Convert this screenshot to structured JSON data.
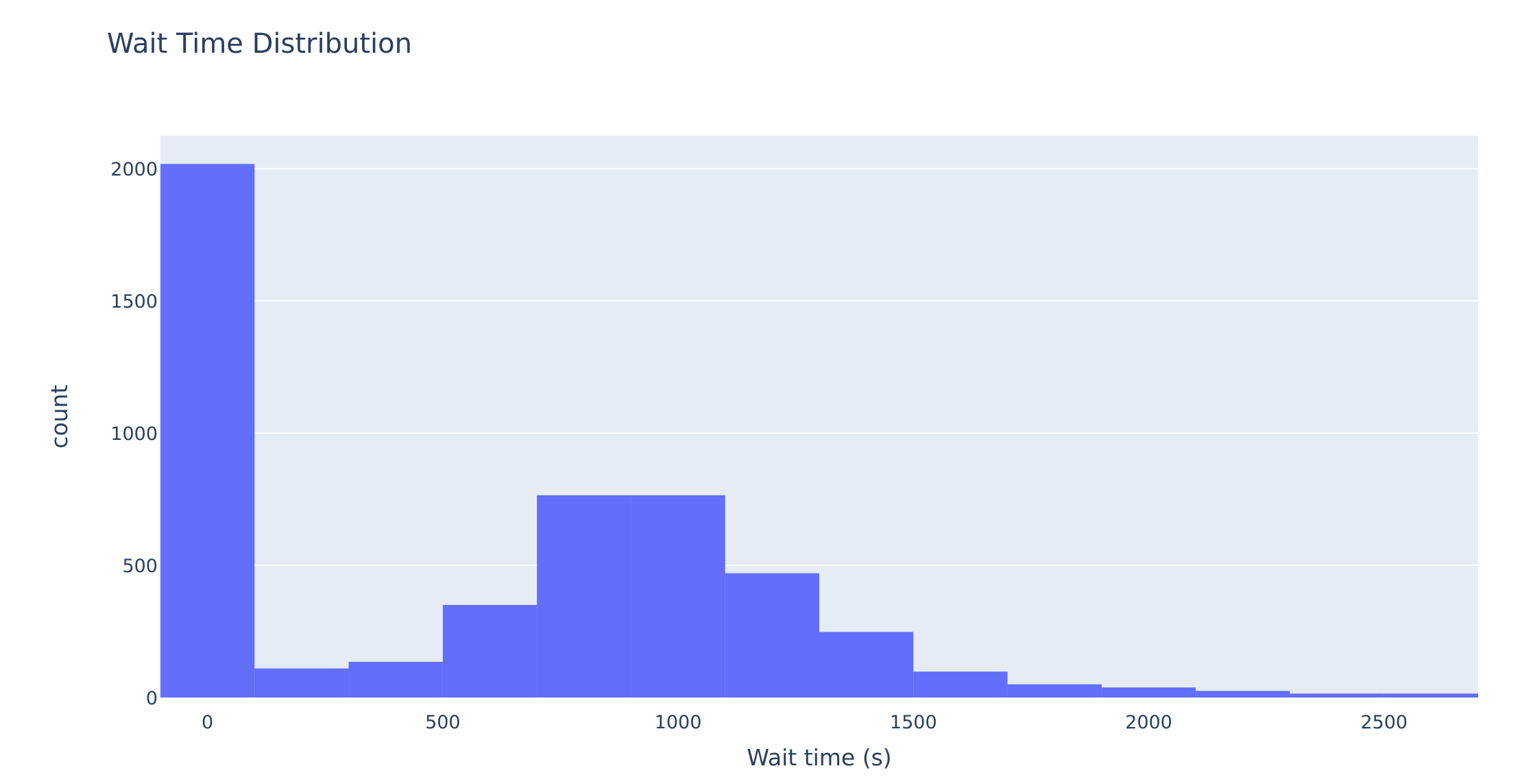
{
  "chart_data": {
    "type": "bar",
    "title": "Wait Time Distribution",
    "xlabel": "Wait time (s)",
    "ylabel": "count",
    "bin_width": 200,
    "bins": [
      {
        "x0": -100,
        "x1": 100,
        "count": 2018
      },
      {
        "x0": 100,
        "x1": 300,
        "count": 110
      },
      {
        "x0": 300,
        "x1": 500,
        "count": 135
      },
      {
        "x0": 500,
        "x1": 700,
        "count": 350
      },
      {
        "x0": 700,
        "x1": 900,
        "count": 765
      },
      {
        "x0": 900,
        "x1": 1100,
        "count": 765
      },
      {
        "x0": 1100,
        "x1": 1300,
        "count": 470
      },
      {
        "x0": 1300,
        "x1": 1500,
        "count": 248
      },
      {
        "x0": 1500,
        "x1": 1700,
        "count": 98
      },
      {
        "x0": 1700,
        "x1": 1900,
        "count": 50
      },
      {
        "x0": 1900,
        "x1": 2100,
        "count": 38
      },
      {
        "x0": 2100,
        "x1": 2300,
        "count": 25
      },
      {
        "x0": 2300,
        "x1": 2500,
        "count": 15
      },
      {
        "x0": 2500,
        "x1": 2700,
        "count": 15
      }
    ],
    "xlim": [
      -100,
      2700
    ],
    "ylim": [
      0,
      2125
    ],
    "xticks": [
      0,
      500,
      1000,
      1500,
      2000,
      2500
    ],
    "xtick_labels": [
      "0",
      "500",
      "1000",
      "1500",
      "2000",
      "2500"
    ],
    "yticks": [
      0,
      500,
      1000,
      1500,
      2000
    ],
    "ytick_labels": [
      "0",
      "500",
      "1000",
      "1500",
      "2000"
    ],
    "grid": true,
    "legend": "none",
    "colors": {
      "bar": "#636efa",
      "plot_background": "#e5ecf6",
      "grid": "#ffffff",
      "text": "#2a3f5f"
    }
  }
}
